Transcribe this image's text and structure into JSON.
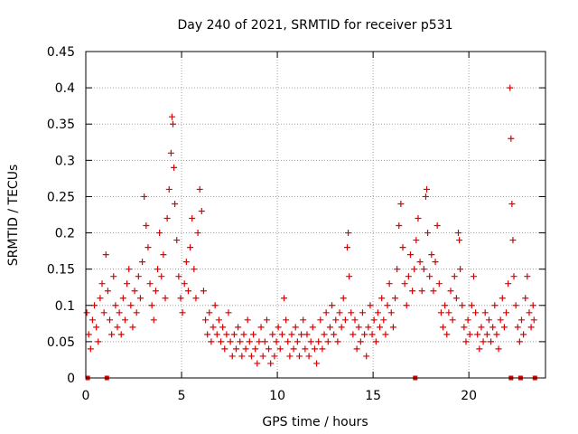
{
  "colors": {
    "series": "#e00000",
    "grid": "#a0a0a0",
    "axis": "#000000"
  },
  "chart_data": {
    "type": "scatter",
    "title": "Day 240 of 2021, SRMTID for receiver p531",
    "xlabel": "GPS time / hours",
    "ylabel": "SRMTID / TECUs",
    "xlim": [
      0,
      24
    ],
    "ylim": [
      0,
      0.45
    ],
    "grid": true,
    "marker": "+",
    "xticks": [
      {
        "value": 0,
        "label": "0"
      },
      {
        "value": 5,
        "label": "5"
      },
      {
        "value": 10,
        "label": "10"
      },
      {
        "value": 15,
        "label": "15"
      },
      {
        "value": 20,
        "label": "20"
      }
    ],
    "yticks": [
      {
        "value": 0,
        "label": "0"
      },
      {
        "value": 0.05,
        "label": "0.05"
      },
      {
        "value": 0.1,
        "label": "0.1"
      },
      {
        "value": 0.15,
        "label": "0.15"
      },
      {
        "value": 0.2,
        "label": "0.2"
      },
      {
        "value": 0.25,
        "label": "0.25"
      },
      {
        "value": 0.3,
        "label": "0.3"
      },
      {
        "value": 0.35,
        "label": "0.35"
      },
      {
        "value": 0.4,
        "label": "0.4"
      },
      {
        "value": 0.45,
        "label": "0.45"
      }
    ],
    "series": [
      {
        "name": "SRMTID",
        "points": [
          [
            0.05,
            0.09
          ],
          [
            0.15,
            0.06
          ],
          [
            0.25,
            0.04
          ],
          [
            0.35,
            0.08
          ],
          [
            0.45,
            0.1
          ],
          [
            0.55,
            0.07
          ],
          [
            0.65,
            0.05
          ],
          [
            0.75,
            0.11
          ],
          [
            0.85,
            0.13
          ],
          [
            0.95,
            0.09
          ],
          [
            1.05,
            0.17
          ],
          [
            1.15,
            0.12
          ],
          [
            1.25,
            0.08
          ],
          [
            1.35,
            0.06
          ],
          [
            1.45,
            0.14
          ],
          [
            1.55,
            0.1
          ],
          [
            1.65,
            0.07
          ],
          [
            1.75,
            0.09
          ],
          [
            1.85,
            0.06
          ],
          [
            1.95,
            0.11
          ],
          [
            2.05,
            0.08
          ],
          [
            2.15,
            0.13
          ],
          [
            2.25,
            0.15
          ],
          [
            2.35,
            0.1
          ],
          [
            2.45,
            0.07
          ],
          [
            2.55,
            0.12
          ],
          [
            2.65,
            0.09
          ],
          [
            2.75,
            0.14
          ],
          [
            2.85,
            0.11
          ],
          [
            2.95,
            0.16
          ],
          [
            3.05,
            0.25
          ],
          [
            3.15,
            0.21
          ],
          [
            3.25,
            0.18
          ],
          [
            3.35,
            0.13
          ],
          [
            3.45,
            0.1
          ],
          [
            3.55,
            0.08
          ],
          [
            3.65,
            0.12
          ],
          [
            3.75,
            0.15
          ],
          [
            3.85,
            0.2
          ],
          [
            3.95,
            0.14
          ],
          [
            4.05,
            0.17
          ],
          [
            4.15,
            0.11
          ],
          [
            4.25,
            0.22
          ],
          [
            4.35,
            0.26
          ],
          [
            4.45,
            0.31
          ],
          [
            4.5,
            0.36
          ],
          [
            4.55,
            0.35
          ],
          [
            4.6,
            0.29
          ],
          [
            4.65,
            0.24
          ],
          [
            4.75,
            0.19
          ],
          [
            4.85,
            0.14
          ],
          [
            4.95,
            0.11
          ],
          [
            5.05,
            0.09
          ],
          [
            5.15,
            0.13
          ],
          [
            5.25,
            0.16
          ],
          [
            5.35,
            0.12
          ],
          [
            5.45,
            0.18
          ],
          [
            5.55,
            0.22
          ],
          [
            5.65,
            0.15
          ],
          [
            5.75,
            0.11
          ],
          [
            5.85,
            0.2
          ],
          [
            5.95,
            0.26
          ],
          [
            6.05,
            0.23
          ],
          [
            6.15,
            0.12
          ],
          [
            6.25,
            0.08
          ],
          [
            6.35,
            0.06
          ],
          [
            6.45,
            0.09
          ],
          [
            6.55,
            0.05
          ],
          [
            6.65,
            0.07
          ],
          [
            6.75,
            0.1
          ],
          [
            6.85,
            0.06
          ],
          [
            6.95,
            0.08
          ],
          [
            7.05,
            0.05
          ],
          [
            7.15,
            0.07
          ],
          [
            7.25,
            0.04
          ],
          [
            7.35,
            0.06
          ],
          [
            7.45,
            0.09
          ],
          [
            7.55,
            0.05
          ],
          [
            7.65,
            0.03
          ],
          [
            7.75,
            0.06
          ],
          [
            7.85,
            0.04
          ],
          [
            7.95,
            0.07
          ],
          [
            8.05,
            0.05
          ],
          [
            8.15,
            0.03
          ],
          [
            8.25,
            0.06
          ],
          [
            8.35,
            0.04
          ],
          [
            8.45,
            0.08
          ],
          [
            8.55,
            0.05
          ],
          [
            8.65,
            0.03
          ],
          [
            8.75,
            0.06
          ],
          [
            8.85,
            0.04
          ],
          [
            8.95,
            0.02
          ],
          [
            9.05,
            0.05
          ],
          [
            9.15,
            0.07
          ],
          [
            9.25,
            0.03
          ],
          [
            9.35,
            0.05
          ],
          [
            9.45,
            0.08
          ],
          [
            9.55,
            0.04
          ],
          [
            9.65,
            0.02
          ],
          [
            9.75,
            0.06
          ],
          [
            9.85,
            0.03
          ],
          [
            9.95,
            0.05
          ],
          [
            10.05,
            0.07
          ],
          [
            10.15,
            0.04
          ],
          [
            10.25,
            0.06
          ],
          [
            10.35,
            0.11
          ],
          [
            10.45,
            0.08
          ],
          [
            10.55,
            0.05
          ],
          [
            10.65,
            0.03
          ],
          [
            10.75,
            0.06
          ],
          [
            10.85,
            0.04
          ],
          [
            10.95,
            0.07
          ],
          [
            11.05,
            0.05
          ],
          [
            11.15,
            0.03
          ],
          [
            11.25,
            0.06
          ],
          [
            11.35,
            0.08
          ],
          [
            11.45,
            0.04
          ],
          [
            11.55,
            0.06
          ],
          [
            11.65,
            0.03
          ],
          [
            11.75,
            0.05
          ],
          [
            11.85,
            0.07
          ],
          [
            11.95,
            0.04
          ],
          [
            12.05,
            0.02
          ],
          [
            12.15,
            0.05
          ],
          [
            12.25,
            0.08
          ],
          [
            12.35,
            0.04
          ],
          [
            12.45,
            0.06
          ],
          [
            12.55,
            0.09
          ],
          [
            12.65,
            0.05
          ],
          [
            12.75,
            0.07
          ],
          [
            12.85,
            0.1
          ],
          [
            12.95,
            0.06
          ],
          [
            13.05,
            0.08
          ],
          [
            13.15,
            0.05
          ],
          [
            13.25,
            0.09
          ],
          [
            13.35,
            0.07
          ],
          [
            13.45,
            0.11
          ],
          [
            13.55,
            0.08
          ],
          [
            13.65,
            0.18
          ],
          [
            13.7,
            0.2
          ],
          [
            13.75,
            0.14
          ],
          [
            13.85,
            0.09
          ],
          [
            13.95,
            0.06
          ],
          [
            14.05,
            0.08
          ],
          [
            14.15,
            0.04
          ],
          [
            14.25,
            0.07
          ],
          [
            14.35,
            0.05
          ],
          [
            14.45,
            0.09
          ],
          [
            14.55,
            0.06
          ],
          [
            14.65,
            0.03
          ],
          [
            14.75,
            0.07
          ],
          [
            14.85,
            0.1
          ],
          [
            14.95,
            0.06
          ],
          [
            15.05,
            0.08
          ],
          [
            15.15,
            0.05
          ],
          [
            15.25,
            0.09
          ],
          [
            15.35,
            0.07
          ],
          [
            15.45,
            0.11
          ],
          [
            15.55,
            0.08
          ],
          [
            15.65,
            0.06
          ],
          [
            15.75,
            0.1
          ],
          [
            15.85,
            0.13
          ],
          [
            15.95,
            0.09
          ],
          [
            16.05,
            0.07
          ],
          [
            16.15,
            0.11
          ],
          [
            16.25,
            0.15
          ],
          [
            16.35,
            0.21
          ],
          [
            16.45,
            0.24
          ],
          [
            16.55,
            0.18
          ],
          [
            16.65,
            0.13
          ],
          [
            16.75,
            0.1
          ],
          [
            16.85,
            0.14
          ],
          [
            16.95,
            0.17
          ],
          [
            17.05,
            0.12
          ],
          [
            17.15,
            0.15
          ],
          [
            17.25,
            0.19
          ],
          [
            17.35,
            0.22
          ],
          [
            17.45,
            0.16
          ],
          [
            17.55,
            0.12
          ],
          [
            17.65,
            0.15
          ],
          [
            17.75,
            0.25
          ],
          [
            17.8,
            0.26
          ],
          [
            17.85,
            0.2
          ],
          [
            17.95,
            0.14
          ],
          [
            18.05,
            0.17
          ],
          [
            18.15,
            0.12
          ],
          [
            18.25,
            0.16
          ],
          [
            18.35,
            0.21
          ],
          [
            18.45,
            0.13
          ],
          [
            18.55,
            0.09
          ],
          [
            18.65,
            0.07
          ],
          [
            18.75,
            0.1
          ],
          [
            18.85,
            0.06
          ],
          [
            18.95,
            0.09
          ],
          [
            19.05,
            0.12
          ],
          [
            19.15,
            0.08
          ],
          [
            19.25,
            0.14
          ],
          [
            19.35,
            0.11
          ],
          [
            19.45,
            0.2
          ],
          [
            19.5,
            0.19
          ],
          [
            19.55,
            0.15
          ],
          [
            19.65,
            0.1
          ],
          [
            19.75,
            0.07
          ],
          [
            19.85,
            0.05
          ],
          [
            19.95,
            0.08
          ],
          [
            20.05,
            0.06
          ],
          [
            20.15,
            0.1
          ],
          [
            20.25,
            0.14
          ],
          [
            20.35,
            0.09
          ],
          [
            20.45,
            0.06
          ],
          [
            20.55,
            0.04
          ],
          [
            20.65,
            0.07
          ],
          [
            20.75,
            0.05
          ],
          [
            20.85,
            0.09
          ],
          [
            20.95,
            0.06
          ],
          [
            21.05,
            0.08
          ],
          [
            21.15,
            0.05
          ],
          [
            21.25,
            0.07
          ],
          [
            21.35,
            0.1
          ],
          [
            21.45,
            0.06
          ],
          [
            21.55,
            0.04
          ],
          [
            21.65,
            0.08
          ],
          [
            21.75,
            0.11
          ],
          [
            21.85,
            0.07
          ],
          [
            21.95,
            0.09
          ],
          [
            22.05,
            0.13
          ],
          [
            22.15,
            0.4
          ],
          [
            22.2,
            0.33
          ],
          [
            22.25,
            0.24
          ],
          [
            22.3,
            0.19
          ],
          [
            22.35,
            0.14
          ],
          [
            22.45,
            0.1
          ],
          [
            22.55,
            0.07
          ],
          [
            22.65,
            0.05
          ],
          [
            22.75,
            0.08
          ],
          [
            22.85,
            0.06
          ],
          [
            22.95,
            0.11
          ],
          [
            23.05,
            0.14
          ],
          [
            23.15,
            0.09
          ],
          [
            23.25,
            0.07
          ],
          [
            23.35,
            0.1
          ],
          [
            23.4,
            0.08
          ]
        ]
      }
    ],
    "baseline_markers": [
      0.1,
      1.1,
      17.2,
      22.2,
      22.7,
      23.45
    ]
  }
}
